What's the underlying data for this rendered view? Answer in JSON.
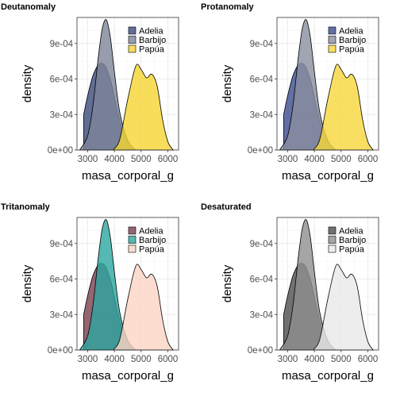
{
  "chart_data": [
    {
      "type": "area",
      "title": "Deutanomaly",
      "xlabel": "masa_corporal_g",
      "ylabel": "density",
      "xlim": [
        2600,
        6400
      ],
      "ylim": [
        0,
        0.00112
      ],
      "x_ticks": [
        3000,
        4000,
        5000,
        6000
      ],
      "x_tick_labels": [
        "3000",
        "4000",
        "5000",
        "6000"
      ],
      "y_ticks": [
        0,
        0.0003,
        0.0006,
        0.0009
      ],
      "y_tick_labels": [
        "0e+00",
        "3e-04",
        "6e-04",
        "9e-04"
      ],
      "grid": true,
      "legend_position": "top-right",
      "legend": [
        "Adelia",
        "Barbijo",
        "Papúa"
      ],
      "colors": [
        "#3a4a7a",
        "#7d8599",
        "#f5d431"
      ],
      "series": [
        {
          "name": "Adelia",
          "x": [
            2850,
            3000,
            3200,
            3400,
            3550,
            3700,
            3900,
            4100,
            4300,
            4500,
            4700
          ],
          "y": [
            0.0003,
            0.00046,
            0.00063,
            0.00072,
            0.00073,
            0.00069,
            0.00055,
            0.00034,
            0.00017,
            6e-05,
            0.0
          ]
        },
        {
          "name": "Barbijo",
          "x": [
            2700,
            3000,
            3200,
            3400,
            3550,
            3700,
            3850,
            4000,
            4200,
            4500,
            4800
          ],
          "y": [
            0.0,
            0.00012,
            0.00038,
            0.00079,
            0.00103,
            0.0011,
            0.00095,
            0.00066,
            0.00032,
            8e-05,
            0.0
          ]
        },
        {
          "name": "Papúa",
          "x": [
            3950,
            4200,
            4500,
            4800,
            5000,
            5200,
            5400,
            5600,
            5800,
            6000,
            6200
          ],
          "y": [
            0.0,
            9e-05,
            0.00043,
            0.00071,
            0.00068,
            0.00061,
            0.00064,
            0.00054,
            0.00026,
            7e-05,
            0.0
          ]
        }
      ]
    },
    {
      "type": "area",
      "title": "Protanomaly",
      "xlabel": "masa_corporal_g",
      "ylabel": "density",
      "xlim": [
        2600,
        6400
      ],
      "ylim": [
        0,
        0.00112
      ],
      "x_ticks": [
        3000,
        4000,
        5000,
        6000
      ],
      "x_tick_labels": [
        "3000",
        "4000",
        "5000",
        "6000"
      ],
      "y_ticks": [
        0,
        0.0003,
        0.0006,
        0.0009
      ],
      "y_tick_labels": [
        "0e+00",
        "3e-04",
        "6e-04",
        "9e-04"
      ],
      "grid": true,
      "legend_position": "top-right",
      "legend": [
        "Adelia",
        "Barbijo",
        "Papúa"
      ],
      "colors": [
        "#3b4b8e",
        "#8a8e9e",
        "#f7d73a"
      ],
      "series": [
        {
          "name": "Adelia",
          "x": [
            2850,
            3000,
            3200,
            3400,
            3550,
            3700,
            3900,
            4100,
            4300,
            4500,
            4700
          ],
          "y": [
            0.0003,
            0.00046,
            0.00063,
            0.00072,
            0.00073,
            0.00069,
            0.00055,
            0.00034,
            0.00017,
            6e-05,
            0.0
          ]
        },
        {
          "name": "Barbijo",
          "x": [
            2700,
            3000,
            3200,
            3400,
            3550,
            3700,
            3850,
            4000,
            4200,
            4500,
            4800
          ],
          "y": [
            0.0,
            0.00012,
            0.00038,
            0.00079,
            0.00103,
            0.0011,
            0.00095,
            0.00066,
            0.00032,
            8e-05,
            0.0
          ]
        },
        {
          "name": "Papúa",
          "x": [
            3950,
            4200,
            4500,
            4800,
            5000,
            5200,
            5400,
            5600,
            5800,
            6000,
            6200
          ],
          "y": [
            0.0,
            9e-05,
            0.00043,
            0.00071,
            0.00068,
            0.00061,
            0.00064,
            0.00054,
            0.00026,
            7e-05,
            0.0
          ]
        }
      ]
    },
    {
      "type": "area",
      "title": "Tritanomaly",
      "xlabel": "masa_corporal_g",
      "ylabel": "density",
      "xlim": [
        2600,
        6400
      ],
      "ylim": [
        0,
        0.00112
      ],
      "x_ticks": [
        3000,
        4000,
        5000,
        6000
      ],
      "x_tick_labels": [
        "3000",
        "4000",
        "5000",
        "6000"
      ],
      "y_ticks": [
        0,
        0.0003,
        0.0006,
        0.0009
      ],
      "y_tick_labels": [
        "0e+00",
        "3e-04",
        "6e-04",
        "9e-04"
      ],
      "grid": true,
      "legend_position": "top-right",
      "legend": [
        "Adelia",
        "Barbijo",
        "Papúa"
      ],
      "colors": [
        "#7a3f4d",
        "#2ba6a0",
        "#fcd4c4"
      ],
      "series": [
        {
          "name": "Adelia",
          "x": [
            2850,
            3000,
            3200,
            3400,
            3550,
            3700,
            3900,
            4100,
            4300,
            4500,
            4700
          ],
          "y": [
            0.0003,
            0.00046,
            0.00063,
            0.00072,
            0.00073,
            0.00069,
            0.00055,
            0.00034,
            0.00017,
            6e-05,
            0.0
          ]
        },
        {
          "name": "Barbijo",
          "x": [
            2700,
            3000,
            3200,
            3400,
            3550,
            3700,
            3850,
            4000,
            4200,
            4500,
            4800
          ],
          "y": [
            0.0,
            0.00012,
            0.00038,
            0.00079,
            0.00103,
            0.0011,
            0.00095,
            0.00066,
            0.00032,
            8e-05,
            0.0
          ]
        },
        {
          "name": "Papúa",
          "x": [
            3950,
            4200,
            4500,
            4800,
            5000,
            5200,
            5400,
            5600,
            5800,
            6000,
            6200
          ],
          "y": [
            0.0,
            9e-05,
            0.00043,
            0.00071,
            0.00068,
            0.00061,
            0.00064,
            0.00054,
            0.00026,
            7e-05,
            0.0
          ]
        }
      ]
    },
    {
      "type": "area",
      "title": "Desaturated",
      "xlabel": "masa_corporal_g",
      "ylabel": "density",
      "xlim": [
        2600,
        6400
      ],
      "ylim": [
        0,
        0.00112
      ],
      "x_ticks": [
        3000,
        4000,
        5000,
        6000
      ],
      "x_tick_labels": [
        "3000",
        "4000",
        "5000",
        "6000"
      ],
      "y_ticks": [
        0,
        0.0003,
        0.0006,
        0.0009
      ],
      "y_tick_labels": [
        "0e+00",
        "3e-04",
        "6e-04",
        "9e-04"
      ],
      "grid": true,
      "legend_position": "top-right",
      "legend": [
        "Adelia",
        "Barbijo",
        "Papúa"
      ],
      "colors": [
        "#4e4e4e",
        "#8f8f8f",
        "#e8e8e8"
      ],
      "series": [
        {
          "name": "Adelia",
          "x": [
            2850,
            3000,
            3200,
            3400,
            3550,
            3700,
            3900,
            4100,
            4300,
            4500,
            4700
          ],
          "y": [
            0.0003,
            0.00046,
            0.00063,
            0.00072,
            0.00073,
            0.00069,
            0.00055,
            0.00034,
            0.00017,
            6e-05,
            0.0
          ]
        },
        {
          "name": "Barbijo",
          "x": [
            2700,
            3000,
            3200,
            3400,
            3550,
            3700,
            3850,
            4000,
            4200,
            4500,
            4800
          ],
          "y": [
            0.0,
            0.00012,
            0.00038,
            0.00079,
            0.00103,
            0.0011,
            0.00095,
            0.00066,
            0.00032,
            8e-05,
            0.0
          ]
        },
        {
          "name": "Papúa",
          "x": [
            3950,
            4200,
            4500,
            4800,
            5000,
            5200,
            5400,
            5600,
            5800,
            6000,
            6200
          ],
          "y": [
            0.0,
            9e-05,
            0.00043,
            0.00071,
            0.00068,
            0.00061,
            0.00064,
            0.00054,
            0.00026,
            7e-05,
            0.0
          ]
        }
      ]
    }
  ]
}
